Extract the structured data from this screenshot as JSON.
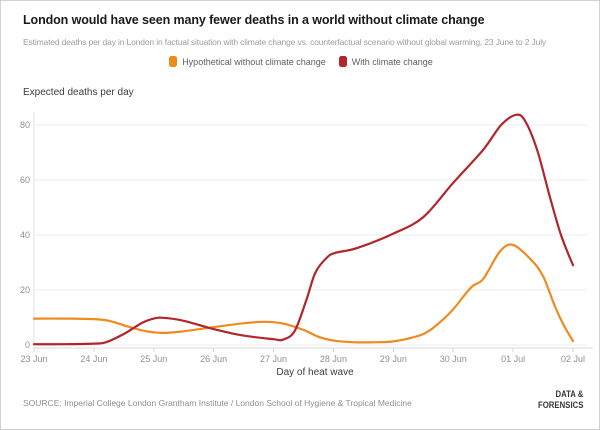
{
  "header": {
    "title": "London would have seen many fewer deaths in a world without climate change",
    "subtitle": "Estimated deaths per day in London in factual situation with climate change vs. counterfactual scenario without global warming, 23 June to 2 July"
  },
  "legend": {
    "items": [
      {
        "label": "Hypothetical without climate change",
        "color": "#EF8A1F"
      },
      {
        "label": "With climate change",
        "color": "#B2252B"
      }
    ]
  },
  "chart_data": {
    "type": "line",
    "title": "London would have seen many fewer deaths in a world without climate change",
    "xlabel": "Day of heat wave",
    "ylabel": "Expected deaths per day",
    "x_tick_labels": [
      "23 Jun",
      "24 Jun",
      "25 Jun",
      "26 Jun",
      "27 Jun",
      "28 Jun",
      "29 Jun",
      "30 Jun",
      "01 Jul",
      "02 Jul"
    ],
    "y_ticks": [
      0,
      20,
      40,
      60,
      80
    ],
    "ylim": [
      0,
      85
    ],
    "grid": true,
    "legend_position": "top",
    "colors": {
      "grid": "#ededed",
      "axis": "#d8d8d8",
      "yaxis_line": "#e2e2e2"
    },
    "series": [
      {
        "name": "Hypothetical without climate change",
        "color": "#EF8A1F",
        "points": [
          [
            0,
            9.6
          ],
          [
            0.6,
            9.6
          ],
          [
            1,
            9.4
          ],
          [
            1.25,
            8.8
          ],
          [
            1.6,
            6.5
          ],
          [
            1.9,
            4.9
          ],
          [
            2.15,
            4.4
          ],
          [
            2.5,
            5.0
          ],
          [
            3,
            6.5
          ],
          [
            3.5,
            7.9
          ],
          [
            3.8,
            8.4
          ],
          [
            4,
            8.3
          ],
          [
            4.2,
            7.6
          ],
          [
            4.5,
            5.5
          ],
          [
            4.75,
            3.0
          ],
          [
            5,
            1.6
          ],
          [
            5.35,
            1.0
          ],
          [
            5.7,
            1.0
          ],
          [
            6,
            1.3
          ],
          [
            6.4,
            3.2
          ],
          [
            6.6,
            5.2
          ],
          [
            6.8,
            8.7
          ],
          [
            7,
            13
          ],
          [
            7.3,
            21
          ],
          [
            7.5,
            24
          ],
          [
            7.78,
            34
          ],
          [
            8,
            36.4
          ],
          [
            8.3,
            31
          ],
          [
            8.5,
            25
          ],
          [
            8.7,
            14
          ],
          [
            8.85,
            7
          ],
          [
            9,
            1.5
          ]
        ]
      },
      {
        "name": "With climate change",
        "color": "#B2252B",
        "points": [
          [
            0,
            0.3
          ],
          [
            0.5,
            0.3
          ],
          [
            1,
            0.5
          ],
          [
            1.2,
            1.0
          ],
          [
            1.5,
            4.0
          ],
          [
            1.8,
            8.0
          ],
          [
            2,
            9.6
          ],
          [
            2.15,
            9.9
          ],
          [
            2.5,
            8.8
          ],
          [
            3,
            5.8
          ],
          [
            3.5,
            3.4
          ],
          [
            4,
            2.1
          ],
          [
            4.15,
            1.9
          ],
          [
            4.35,
            5.0
          ],
          [
            4.55,
            16.5
          ],
          [
            4.7,
            26.4
          ],
          [
            4.9,
            32
          ],
          [
            5.05,
            33.6
          ],
          [
            5.4,
            35.3
          ],
          [
            6,
            40.5
          ],
          [
            6.5,
            46.5
          ],
          [
            7,
            59
          ],
          [
            7.5,
            71
          ],
          [
            7.8,
            80
          ],
          [
            8.05,
            83.7
          ],
          [
            8.2,
            81.5
          ],
          [
            8.4,
            71
          ],
          [
            8.6,
            55
          ],
          [
            8.8,
            40
          ],
          [
            9,
            29
          ]
        ]
      }
    ]
  },
  "footer": {
    "source": "SOURCE: Imperial College London Grantham Institute / London School of Hygiene & Tropical Medicine",
    "logo_line1": "DATA &",
    "logo_line2": "FORENSICS"
  }
}
